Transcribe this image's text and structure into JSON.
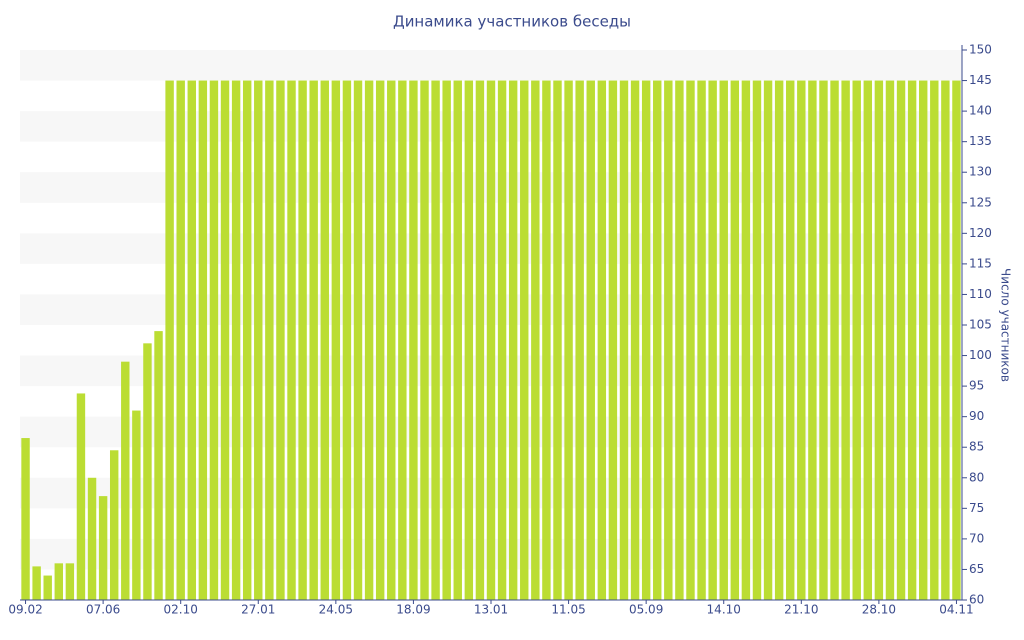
{
  "chart_data": {
    "type": "bar",
    "title": "Динамика участников беседы",
    "y_label": "Число участников",
    "color": "#bbdd33",
    "axis_side": "right",
    "grid": "bands",
    "categories": [
      "09.02",
      null,
      null,
      null,
      null,
      null,
      null,
      "07.06",
      null,
      null,
      null,
      null,
      null,
      null,
      "02.10",
      null,
      null,
      null,
      null,
      null,
      null,
      "27.01",
      null,
      null,
      null,
      null,
      null,
      null,
      "24.05",
      null,
      null,
      null,
      null,
      null,
      null,
      "18.09",
      null,
      null,
      null,
      null,
      null,
      null,
      "13.01",
      null,
      null,
      null,
      null,
      null,
      null,
      "11.05",
      null,
      null,
      null,
      null,
      null,
      null,
      "05.09",
      null,
      null,
      null,
      null,
      null,
      null,
      "14.10",
      null,
      null,
      null,
      null,
      null,
      null,
      "21.10",
      null,
      null,
      null,
      null,
      null,
      null,
      "28.10",
      null,
      null,
      null,
      null,
      null,
      null,
      "04.11"
    ],
    "values": [
      86.5,
      65.5,
      64,
      66,
      66,
      93.8,
      80,
      77,
      84.5,
      99,
      91,
      102,
      104,
      145,
      145,
      145,
      145,
      145,
      145,
      145,
      145,
      145,
      145,
      145,
      145,
      145,
      145,
      145,
      145,
      145,
      145,
      145,
      145,
      145,
      145,
      145,
      145,
      145,
      145,
      145,
      145,
      145,
      145,
      145,
      145,
      145,
      145,
      145,
      145,
      145,
      145,
      145,
      145,
      145,
      145,
      145,
      145,
      145,
      145,
      145,
      145,
      145,
      145,
      145,
      145,
      145,
      145,
      145,
      145,
      145,
      145,
      145,
      145,
      145,
      145,
      145,
      145,
      145,
      145,
      145,
      145,
      145,
      145,
      145,
      145
    ],
    "ylim": [
      60,
      150
    ],
    "yticks": [
      60,
      65,
      70,
      75,
      80,
      85,
      90,
      95,
      100,
      105,
      110,
      115,
      120,
      125,
      130,
      135,
      140,
      145,
      150
    ]
  }
}
